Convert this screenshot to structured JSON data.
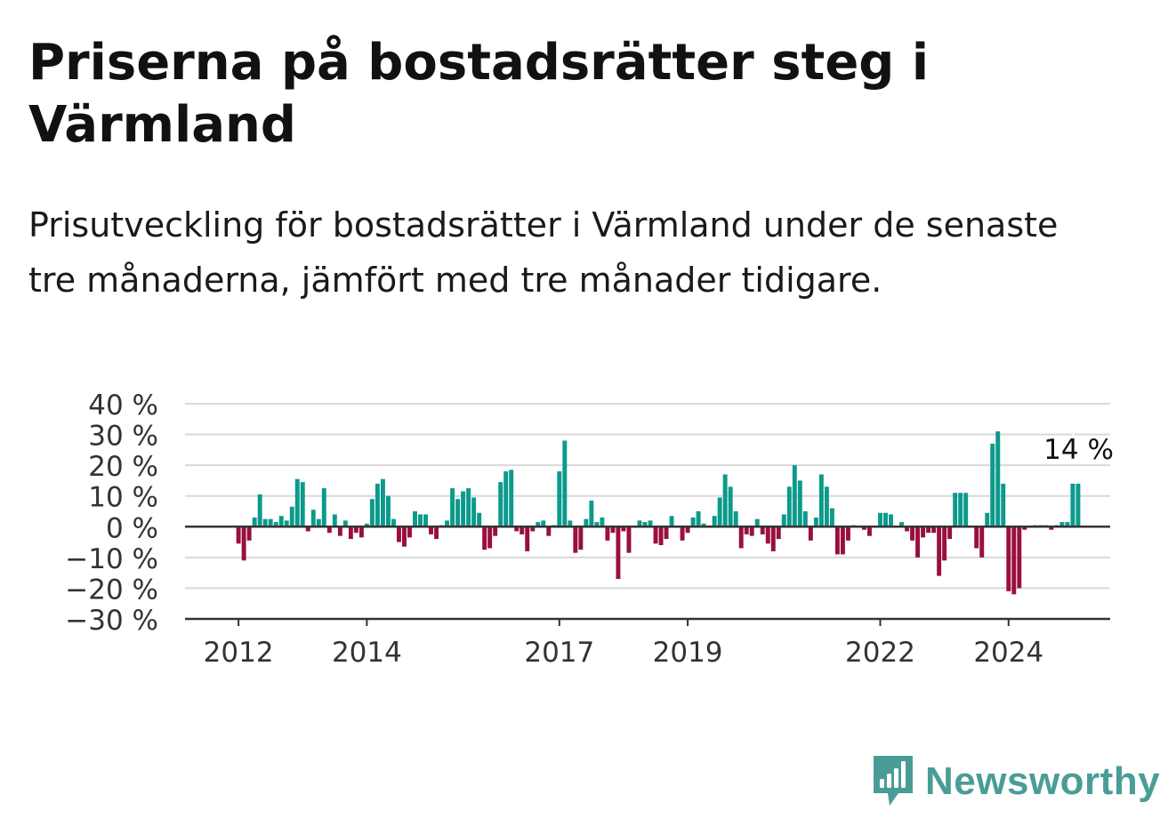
{
  "title": "Priserna på bostadsrätter steg i Värmland",
  "subtitle": "Prisutveckling för bostadsrätter i Värmland under de senaste tre månaderna, jämfört med tre månader tidigare.",
  "brand": {
    "name": "Newsworthy",
    "icon": "newsworthy-logo-icon"
  },
  "colors": {
    "positive": "#0b9a8c",
    "negative": "#990f3d",
    "grid": "#d9d9d9",
    "axis": "#333333",
    "brand": "#4a9d96"
  },
  "chart_data": {
    "type": "bar",
    "ylim": [
      -30,
      40
    ],
    "yticks": [
      -30,
      -20,
      -10,
      0,
      10,
      20,
      30,
      40
    ],
    "ytick_labels": [
      "−30 %",
      "−20 %",
      "−10 %",
      "0 %",
      "10 %",
      "20 %",
      "30 %",
      "40 %"
    ],
    "xlim": [
      "2011-03",
      "2025-08"
    ],
    "xticks": [
      "2012-01",
      "2014-01",
      "2017-01",
      "2019-01",
      "2022-01",
      "2024-01"
    ],
    "xtick_labels": [
      "2012",
      "2014",
      "2017",
      "2019",
      "2022",
      "2024"
    ],
    "grid": true,
    "annotation": {
      "text": "14 %",
      "at": "2025-02"
    },
    "series": [
      {
        "x": [
          "2012-01",
          "2012-02",
          "2012-03",
          "2012-04",
          "2012-05",
          "2012-06",
          "2012-07",
          "2012-08",
          "2012-09",
          "2012-10",
          "2012-11",
          "2012-12",
          "2013-01",
          "2013-02",
          "2013-03",
          "2013-04",
          "2013-05",
          "2013-06",
          "2013-07",
          "2013-08",
          "2013-09",
          "2013-10",
          "2013-11",
          "2013-12",
          "2014-01",
          "2014-02",
          "2014-03",
          "2014-04",
          "2014-05",
          "2014-06",
          "2014-07",
          "2014-08",
          "2014-09",
          "2014-10",
          "2014-11",
          "2014-12",
          "2015-01",
          "2015-02",
          "2015-03",
          "2015-04",
          "2015-05",
          "2015-06",
          "2015-07",
          "2015-08",
          "2015-09",
          "2015-10",
          "2015-11",
          "2015-12",
          "2016-01",
          "2016-02",
          "2016-03",
          "2016-04",
          "2016-05",
          "2016-06",
          "2016-07",
          "2016-08",
          "2016-09",
          "2016-10",
          "2016-11",
          "2016-12",
          "2017-01",
          "2017-02",
          "2017-03",
          "2017-04",
          "2017-05",
          "2017-06",
          "2017-07",
          "2017-08",
          "2017-09",
          "2017-10",
          "2017-11",
          "2017-12",
          "2018-01",
          "2018-02",
          "2018-03",
          "2018-04",
          "2018-05",
          "2018-06",
          "2018-07",
          "2018-08",
          "2018-09",
          "2018-10",
          "2018-11",
          "2018-12",
          "2019-01",
          "2019-02",
          "2019-03",
          "2019-04",
          "2019-05",
          "2019-06",
          "2019-07",
          "2019-08",
          "2019-09",
          "2019-10",
          "2019-11",
          "2019-12",
          "2020-01",
          "2020-02",
          "2020-03",
          "2020-04",
          "2020-05",
          "2020-06",
          "2020-07",
          "2020-08",
          "2020-09",
          "2020-10",
          "2020-11",
          "2020-12",
          "2021-01",
          "2021-02",
          "2021-03",
          "2021-04",
          "2021-05",
          "2021-06",
          "2021-07",
          "2021-08",
          "2021-09",
          "2021-10",
          "2021-11",
          "2021-12",
          "2022-01",
          "2022-02",
          "2022-03",
          "2022-04",
          "2022-05",
          "2022-06",
          "2022-07",
          "2022-08",
          "2022-09",
          "2022-10",
          "2022-11",
          "2022-12",
          "2023-01",
          "2023-02",
          "2023-03",
          "2023-04",
          "2023-05",
          "2023-06",
          "2023-07",
          "2023-08",
          "2023-09",
          "2023-10",
          "2023-11",
          "2023-12",
          "2024-01",
          "2024-02",
          "2024-03",
          "2024-04",
          "2024-05",
          "2024-06",
          "2024-07",
          "2024-08",
          "2024-09",
          "2024-10",
          "2024-11",
          "2024-12",
          "2025-01",
          "2025-02"
        ],
        "values": [
          -5.5,
          -11,
          -4.5,
          3,
          10.5,
          2.5,
          2.5,
          1.5,
          3.5,
          2,
          6.5,
          15.5,
          14.5,
          -1.5,
          5.5,
          2.5,
          12.5,
          -2,
          4,
          -3,
          2,
          -4,
          -2,
          -3.5,
          1,
          9,
          14,
          15.5,
          10,
          2.5,
          -5,
          -6.5,
          -3.5,
          5,
          4,
          4,
          -2.5,
          -4,
          0.5,
          2,
          12.5,
          9,
          11.5,
          12.5,
          9.5,
          4.5,
          -7.5,
          -7,
          -3,
          14.5,
          18,
          18.5,
          -1.5,
          -2.5,
          -8,
          -1.5,
          1.5,
          2,
          -3,
          0.5,
          18,
          28,
          2,
          -8.5,
          -7.5,
          2.5,
          8.5,
          1.5,
          3,
          -4.5,
          -2,
          -17,
          -1.5,
          -8.5,
          0,
          2,
          1.5,
          2,
          -5.5,
          -6,
          -4,
          3.5,
          0,
          -4.5,
          -2,
          3,
          5,
          1,
          0,
          3.5,
          9.5,
          17,
          13,
          5,
          -7,
          -2.5,
          -3,
          2.5,
          -2.5,
          -5.5,
          -8,
          -4,
          4,
          13,
          20,
          15,
          5,
          -4.5,
          3,
          17,
          13,
          6,
          -9,
          -9,
          -4.5,
          0.5,
          0,
          -1,
          -3,
          0,
          4.5,
          4.5,
          4,
          0,
          1.5,
          -1.5,
          -4.5,
          -10,
          -3.5,
          -2,
          -2,
          -16,
          -11,
          -4,
          11,
          11,
          11,
          0,
          -7,
          -10,
          4.5,
          27,
          31,
          14,
          -21,
          -22,
          -20,
          -1,
          0,
          0.5,
          0.5,
          0.5,
          -1,
          0.5,
          1.5,
          1.5,
          14,
          14
        ]
      }
    ]
  }
}
